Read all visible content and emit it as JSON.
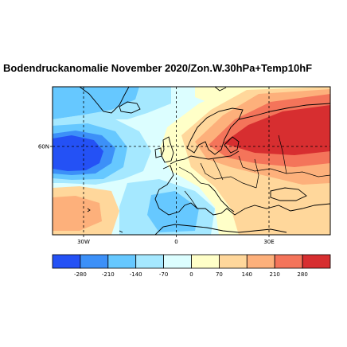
{
  "title": "Bodendruckanomalie November 2020/Zon.W.30hPa+Temp10hF",
  "map": {
    "lon_labels": [
      {
        "lon": -30,
        "label": "30W"
      },
      {
        "lon": 0,
        "label": "0"
      },
      {
        "lon": 30,
        "label": "30E"
      }
    ],
    "lat_labels": [
      {
        "lat": 60,
        "label": "60N"
      }
    ],
    "grid_style": "dashed",
    "pressure_anomaly_pattern": [
      {
        "region": "Atlantic west of Ireland / south of Iceland",
        "level": -280
      },
      {
        "region": "Greenland and Iceland area",
        "level": -140
      },
      {
        "region": "North-east Atlantic / Bay of Biscay",
        "level": -70
      },
      {
        "region": "Iberia and Western Mediterranean",
        "level": -70
      },
      {
        "region": "Subtropical Atlantic near Azores",
        "level": 140
      },
      {
        "region": "Scandinavia, Baltic and northern Russia",
        "level": 280
      },
      {
        "region": "Central and Eastern Europe",
        "level": 140
      }
    ]
  },
  "colorbar": {
    "colors": [
      "#2451f5",
      "#3c90f8",
      "#66c8ff",
      "#a5e8ff",
      "#dcfeff",
      "#ffffc8",
      "#ffd79b",
      "#fdb07b",
      "#f4745a",
      "#d72e30"
    ],
    "labels": [
      "-280",
      "-210",
      "-140",
      "-70",
      "0",
      "70",
      "140",
      "210",
      "280"
    ]
  }
}
